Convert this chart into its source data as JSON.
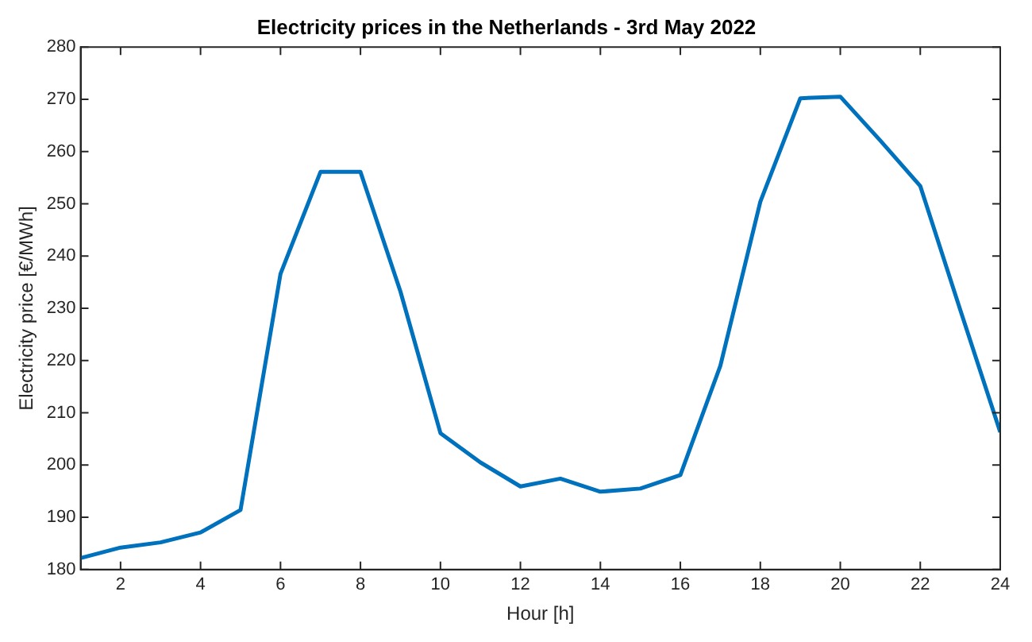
{
  "chart_data": {
    "type": "line",
    "title": "Electricity prices in the Netherlands - 3rd May 2022",
    "xlabel": "Hour [h]",
    "ylabel": "Electricity price [€/MWh]",
    "x": [
      1,
      2,
      3,
      4,
      5,
      6,
      7,
      8,
      9,
      10,
      11,
      12,
      13,
      14,
      15,
      16,
      17,
      18,
      19,
      20,
      21,
      22,
      23,
      24
    ],
    "series": [
      {
        "color": "#0072bd",
        "values": [
          182.2,
          184.2,
          185.2,
          187.1,
          191.4,
          236.6,
          256.1,
          256.1,
          233.2,
          206.1,
          200.5,
          195.9,
          197.4,
          194.9,
          195.5,
          198.1,
          219,
          250.4,
          270.2,
          270.5,
          262.1,
          253.4,
          229.7,
          206.3
        ]
      }
    ],
    "xlim": [
      1,
      24
    ],
    "xticks": [
      2,
      4,
      6,
      8,
      10,
      12,
      14,
      16,
      18,
      20,
      22,
      24
    ],
    "ylim": [
      180,
      280
    ],
    "yticks": [
      180,
      190,
      200,
      210,
      220,
      230,
      240,
      250,
      260,
      270,
      280
    ],
    "grid": false,
    "legend": false,
    "marker": "none",
    "line_style": "solid"
  }
}
